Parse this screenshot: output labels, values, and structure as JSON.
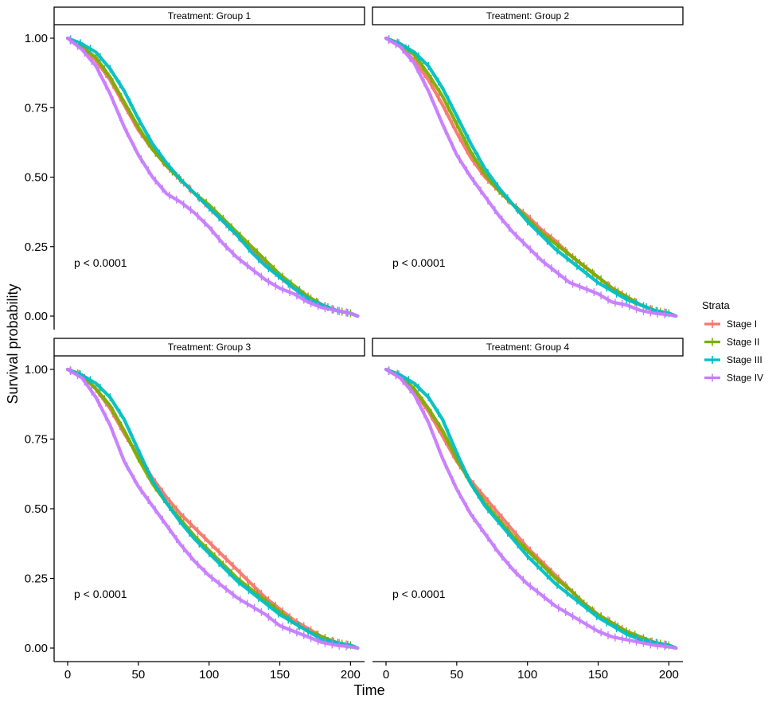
{
  "chart_data": {
    "type": "line",
    "subtype": "kaplan-meier survival curves, faceted",
    "xlabel": "Time",
    "ylabel": "Survival probability",
    "xlim": [
      0,
      205
    ],
    "ylim": [
      0,
      1
    ],
    "x_ticks": [
      0,
      50,
      100,
      150,
      200
    ],
    "y_ticks": [
      0,
      0.25,
      0.5,
      0.75,
      1.0
    ],
    "y_tick_labels": [
      "0.00",
      "0.25",
      "0.50",
      "0.75",
      "1.00"
    ],
    "grid": false,
    "legend": {
      "title": "Strata",
      "position": "right"
    },
    "strata": [
      {
        "name": "Stage I",
        "color": "#F8766D"
      },
      {
        "name": "Stage II",
        "color": "#7CAE00"
      },
      {
        "name": "Stage III",
        "color": "#00BFC4"
      },
      {
        "name": "Stage IV",
        "color": "#C77CFF"
      }
    ],
    "panels": [
      {
        "title": "Treatment: Group 1",
        "p_value": "p < 0.0001",
        "series": [
          {
            "name": "Stage I",
            "x": [
              0,
              10,
              20,
              30,
              40,
              50,
              60,
              70,
              80,
              90,
              100,
              110,
              120,
              130,
              140,
              150,
              160,
              170,
              180,
              190,
              200,
              205
            ],
            "y": [
              1.0,
              0.97,
              0.92,
              0.85,
              0.76,
              0.67,
              0.6,
              0.54,
              0.49,
              0.44,
              0.39,
              0.34,
              0.29,
              0.24,
              0.19,
              0.14,
              0.1,
              0.07,
              0.04,
              0.02,
              0.01,
              0.0
            ]
          },
          {
            "name": "Stage II",
            "x": [
              0,
              10,
              20,
              30,
              40,
              50,
              60,
              70,
              80,
              90,
              100,
              110,
              120,
              130,
              140,
              150,
              160,
              170,
              180,
              190,
              200,
              205
            ],
            "y": [
              1.0,
              0.97,
              0.93,
              0.86,
              0.77,
              0.68,
              0.6,
              0.54,
              0.49,
              0.44,
              0.4,
              0.35,
              0.3,
              0.25,
              0.2,
              0.15,
              0.11,
              0.07,
              0.04,
              0.02,
              0.01,
              0.0
            ]
          },
          {
            "name": "Stage III",
            "x": [
              0,
              10,
              20,
              30,
              40,
              50,
              60,
              70,
              80,
              90,
              100,
              110,
              120,
              130,
              140,
              150,
              160,
              170,
              180,
              190,
              200,
              205
            ],
            "y": [
              1.0,
              0.98,
              0.95,
              0.89,
              0.81,
              0.71,
              0.62,
              0.55,
              0.49,
              0.44,
              0.39,
              0.34,
              0.29,
              0.23,
              0.18,
              0.14,
              0.1,
              0.06,
              0.04,
              0.02,
              0.01,
              0.0
            ]
          },
          {
            "name": "Stage IV",
            "x": [
              0,
              10,
              20,
              30,
              40,
              50,
              60,
              70,
              80,
              90,
              100,
              110,
              120,
              130,
              140,
              150,
              160,
              170,
              180,
              190,
              200,
              205
            ],
            "y": [
              1.0,
              0.96,
              0.9,
              0.8,
              0.68,
              0.58,
              0.5,
              0.44,
              0.41,
              0.37,
              0.32,
              0.26,
              0.21,
              0.17,
              0.13,
              0.1,
              0.08,
              0.05,
              0.03,
              0.02,
              0.01,
              0.0
            ]
          }
        ]
      },
      {
        "title": "Treatment: Group 2",
        "p_value": "p < 0.0001",
        "series": [
          {
            "name": "Stage I",
            "x": [
              0,
              10,
              20,
              30,
              40,
              50,
              60,
              70,
              80,
              90,
              100,
              110,
              120,
              130,
              140,
              150,
              160,
              170,
              180,
              190,
              200,
              205
            ],
            "y": [
              1.0,
              0.97,
              0.92,
              0.85,
              0.76,
              0.66,
              0.57,
              0.5,
              0.45,
              0.4,
              0.36,
              0.31,
              0.27,
              0.22,
              0.18,
              0.14,
              0.1,
              0.07,
              0.04,
              0.02,
              0.01,
              0.0
            ]
          },
          {
            "name": "Stage II",
            "x": [
              0,
              10,
              20,
              30,
              40,
              50,
              60,
              70,
              80,
              90,
              100,
              110,
              120,
              130,
              140,
              150,
              160,
              170,
              180,
              190,
              200,
              205
            ],
            "y": [
              1.0,
              0.98,
              0.94,
              0.87,
              0.79,
              0.69,
              0.59,
              0.51,
              0.45,
              0.4,
              0.35,
              0.3,
              0.26,
              0.22,
              0.18,
              0.14,
              0.1,
              0.07,
              0.04,
              0.02,
              0.01,
              0.0
            ]
          },
          {
            "name": "Stage III",
            "x": [
              0,
              10,
              20,
              30,
              40,
              50,
              60,
              70,
              80,
              90,
              100,
              110,
              120,
              130,
              140,
              150,
              160,
              170,
              180,
              190,
              200,
              205
            ],
            "y": [
              1.0,
              0.98,
              0.95,
              0.9,
              0.82,
              0.72,
              0.62,
              0.53,
              0.46,
              0.4,
              0.34,
              0.29,
              0.24,
              0.2,
              0.16,
              0.12,
              0.09,
              0.06,
              0.04,
              0.02,
              0.01,
              0.0
            ]
          },
          {
            "name": "Stage IV",
            "x": [
              0,
              10,
              20,
              30,
              40,
              50,
              60,
              70,
              80,
              90,
              100,
              110,
              120,
              130,
              140,
              150,
              160,
              170,
              180,
              190,
              200,
              205
            ],
            "y": [
              1.0,
              0.97,
              0.91,
              0.81,
              0.69,
              0.58,
              0.5,
              0.43,
              0.36,
              0.3,
              0.25,
              0.2,
              0.16,
              0.12,
              0.1,
              0.08,
              0.05,
              0.04,
              0.02,
              0.01,
              0.005,
              0.0
            ]
          }
        ]
      },
      {
        "title": "Treatment: Group 3",
        "p_value": "p < 0.0001",
        "series": [
          {
            "name": "Stage I",
            "x": [
              0,
              10,
              20,
              30,
              40,
              50,
              60,
              70,
              80,
              90,
              100,
              110,
              120,
              130,
              140,
              150,
              160,
              170,
              180,
              190,
              200,
              205
            ],
            "y": [
              1.0,
              0.98,
              0.93,
              0.86,
              0.77,
              0.69,
              0.61,
              0.54,
              0.48,
              0.43,
              0.38,
              0.33,
              0.28,
              0.23,
              0.18,
              0.14,
              0.1,
              0.07,
              0.04,
              0.02,
              0.01,
              0.0
            ]
          },
          {
            "name": "Stage II",
            "x": [
              0,
              10,
              20,
              30,
              40,
              50,
              60,
              70,
              80,
              90,
              100,
              110,
              120,
              130,
              140,
              150,
              160,
              170,
              180,
              190,
              200,
              205
            ],
            "y": [
              1.0,
              0.98,
              0.93,
              0.87,
              0.78,
              0.68,
              0.59,
              0.52,
              0.46,
              0.4,
              0.35,
              0.3,
              0.25,
              0.21,
              0.17,
              0.13,
              0.09,
              0.06,
              0.04,
              0.02,
              0.01,
              0.0
            ]
          },
          {
            "name": "Stage III",
            "x": [
              0,
              10,
              20,
              30,
              40,
              50,
              60,
              70,
              80,
              90,
              100,
              110,
              120,
              130,
              140,
              150,
              160,
              170,
              180,
              190,
              200,
              205
            ],
            "y": [
              1.0,
              0.98,
              0.95,
              0.9,
              0.82,
              0.71,
              0.6,
              0.52,
              0.45,
              0.39,
              0.34,
              0.29,
              0.24,
              0.2,
              0.16,
              0.12,
              0.09,
              0.06,
              0.03,
              0.02,
              0.01,
              0.0
            ]
          },
          {
            "name": "Stage IV",
            "x": [
              0,
              10,
              20,
              30,
              40,
              50,
              60,
              70,
              80,
              90,
              100,
              110,
              120,
              130,
              140,
              150,
              160,
              170,
              180,
              190,
              200,
              205
            ],
            "y": [
              1.0,
              0.97,
              0.9,
              0.8,
              0.67,
              0.58,
              0.51,
              0.44,
              0.37,
              0.31,
              0.26,
              0.22,
              0.18,
              0.15,
              0.12,
              0.08,
              0.06,
              0.04,
              0.02,
              0.01,
              0.005,
              0.0
            ]
          }
        ]
      },
      {
        "title": "Treatment: Group 4",
        "p_value": "p < 0.0001",
        "series": [
          {
            "name": "Stage I",
            "x": [
              0,
              10,
              20,
              30,
              40,
              50,
              60,
              70,
              80,
              90,
              100,
              110,
              120,
              130,
              140,
              150,
              160,
              170,
              180,
              190,
              200,
              205
            ],
            "y": [
              1.0,
              0.97,
              0.92,
              0.85,
              0.76,
              0.67,
              0.6,
              0.54,
              0.48,
              0.42,
              0.36,
              0.31,
              0.26,
              0.21,
              0.16,
              0.12,
              0.09,
              0.06,
              0.03,
              0.02,
              0.01,
              0.0
            ]
          },
          {
            "name": "Stage II",
            "x": [
              0,
              10,
              20,
              30,
              40,
              50,
              60,
              70,
              80,
              90,
              100,
              110,
              120,
              130,
              140,
              150,
              160,
              170,
              180,
              190,
              200,
              205
            ],
            "y": [
              1.0,
              0.98,
              0.93,
              0.86,
              0.78,
              0.68,
              0.59,
              0.52,
              0.46,
              0.4,
              0.35,
              0.3,
              0.25,
              0.21,
              0.16,
              0.12,
              0.09,
              0.06,
              0.04,
              0.02,
              0.01,
              0.0
            ]
          },
          {
            "name": "Stage III",
            "x": [
              0,
              10,
              20,
              30,
              40,
              50,
              60,
              70,
              80,
              90,
              100,
              110,
              120,
              130,
              140,
              150,
              160,
              170,
              180,
              190,
              200,
              205
            ],
            "y": [
              1.0,
              0.98,
              0.95,
              0.9,
              0.82,
              0.7,
              0.59,
              0.51,
              0.45,
              0.39,
              0.33,
              0.28,
              0.23,
              0.19,
              0.15,
              0.11,
              0.08,
              0.05,
              0.03,
              0.02,
              0.01,
              0.0
            ]
          },
          {
            "name": "Stage IV",
            "x": [
              0,
              10,
              20,
              30,
              40,
              50,
              60,
              70,
              80,
              90,
              100,
              110,
              120,
              130,
              140,
              150,
              160,
              170,
              180,
              190,
              200,
              205
            ],
            "y": [
              1.0,
              0.97,
              0.91,
              0.81,
              0.68,
              0.57,
              0.48,
              0.41,
              0.34,
              0.28,
              0.23,
              0.19,
              0.15,
              0.12,
              0.09,
              0.06,
              0.04,
              0.03,
              0.02,
              0.01,
              0.005,
              0.0
            ]
          }
        ]
      }
    ]
  }
}
